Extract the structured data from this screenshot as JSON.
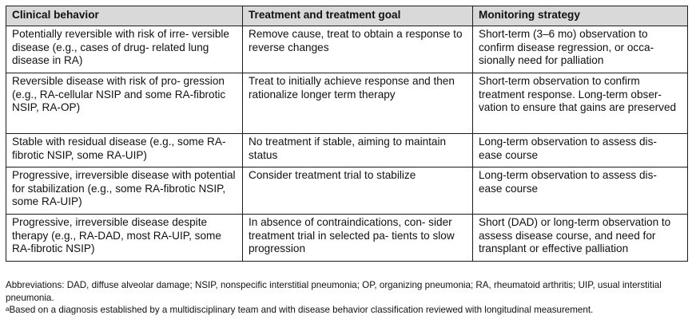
{
  "table": {
    "headers": [
      "Clinical behavior",
      "Treatment and treatment goal",
      "Monitoring strategy"
    ],
    "rows": [
      {
        "behavior": "Potentially reversible with risk of irre- versible disease (e.g., cases of drug- related lung disease in RA)",
        "treatment": "Remove cause, treat to obtain a response to reverse changes",
        "monitoring": "Short-term (3–6 mo) observation to confirm disease regression, or occa- sionally need for palliation"
      },
      {
        "behavior": "Reversible disease with risk of pro- gression (e.g., RA-cellular NSIP and some RA-fibrotic NSIP, RA-OP)",
        "treatment": "Treat to initially achieve response and then rationalize longer term therapy",
        "monitoring": "Short-term observation to confirm treatment response. Long-term obser- vation to ensure that gains are preserved"
      },
      {
        "behavior": "Stable with residual disease (e.g., some RA-fibrotic NSIP, some RA-UIP)",
        "treatment": "No treatment if stable, aiming to maintain status",
        "monitoring": "Long-term observation to assess dis- ease course"
      },
      {
        "behavior": "Progressive, irreversible disease with potential for stabilization (e.g., some RA-fibrotic NSIP, some RA-UIP)",
        "treatment": "Consider treatment trial to stabilize",
        "monitoring": "Long-term observation to assess dis- ease course"
      },
      {
        "behavior": "Progressive, irreversible disease despite therapy (e.g., RA-DAD, most RA-UIP, some RA-fibrotic NSIP)",
        "treatment": "In absence of contraindications, con- sider treatment trial in selected pa- tients to slow progression",
        "monitoring": "Short (DAD) or long-term observation to assess disease course, and need for transplant or effective palliation"
      }
    ]
  },
  "footnotes": {
    "abbreviations": "Abbreviations: DAD, diffuse alveolar damage; NSIP, nonspecific interstitial pneumonia; OP, organizing pneumonia; RA, rheumatoid arthritis; UIP, usual interstitial pneumonia.",
    "note_marker": "a",
    "note_text": "Based on a diagnosis established by a multidisciplinary team and with disease behavior classification reviewed with longitudinal measurement."
  }
}
